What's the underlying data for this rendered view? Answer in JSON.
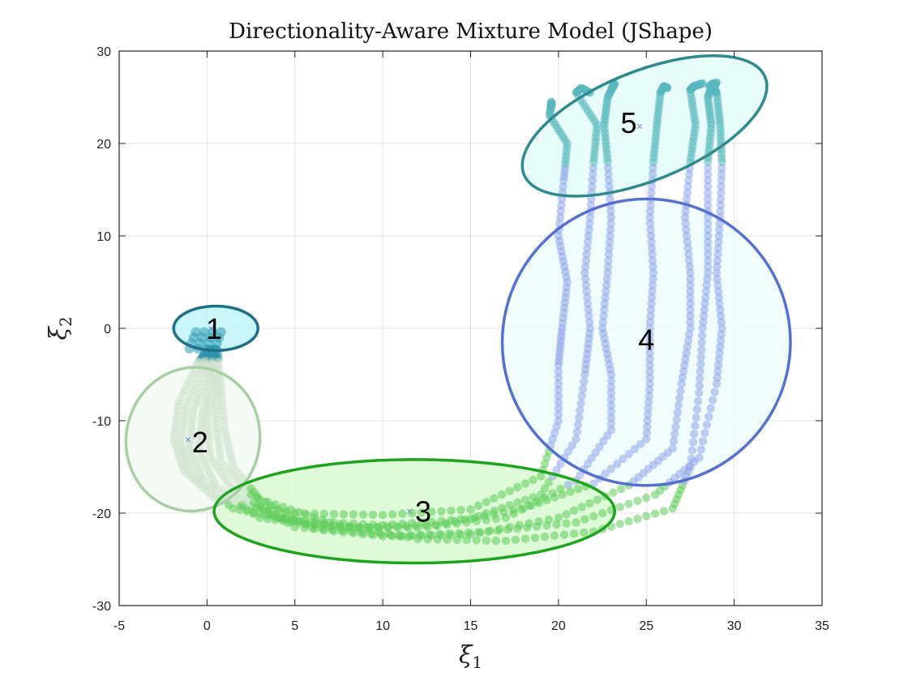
{
  "chart_data": {
    "type": "scatter",
    "title": "Directionality-Aware Mixture Model (JShape)",
    "xlabel": "ξ1",
    "ylabel": "ξ2",
    "xlim": [
      -5,
      35
    ],
    "ylim": [
      -30,
      30
    ],
    "xticks": [
      "-5",
      "0",
      "5",
      "10",
      "15",
      "20",
      "25",
      "30",
      "35"
    ],
    "yticks": [
      "-30",
      "-20",
      "-10",
      "0",
      "10",
      "20",
      "30"
    ],
    "xtick_values": [
      -5,
      0,
      5,
      10,
      15,
      20,
      25,
      30,
      35
    ],
    "ytick_values": [
      -30,
      -20,
      -10,
      0,
      10,
      20,
      30
    ],
    "grid": true,
    "components": [
      {
        "label": "1",
        "center": [
          0.5,
          0
        ],
        "rx": 2.4,
        "ry": 2.4,
        "angle": 0,
        "fill": "#bff5f8",
        "edge": "#1f6f86",
        "label_pos": [
          0.4,
          0
        ]
      },
      {
        "label": "2",
        "center": [
          -0.8,
          -12
        ],
        "rx": 3.8,
        "ry": 7.8,
        "angle": 12,
        "fill": "#f2faf2",
        "edge": "#a8cfa3",
        "label_pos": [
          -0.4,
          -12.3
        ]
      },
      {
        "label": "3",
        "center": [
          11.8,
          -19.8
        ],
        "rx": 11.4,
        "ry": 5.6,
        "angle": 0,
        "fill": "#d8f9d2",
        "edge": "#1ea31e",
        "label_pos": [
          12.3,
          -19.8
        ]
      },
      {
        "label": "4",
        "center": [
          25,
          -1.5
        ],
        "rx": 8.2,
        "ry": 15.5,
        "angle": -8,
        "fill": "#eefcfd",
        "edge": "#5570cf",
        "label_pos": [
          25,
          -1.2
        ]
      },
      {
        "label": "5",
        "center": [
          24.9,
          21.9
        ],
        "rx": 7.4,
        "ry": 5.9,
        "angle": -22,
        "fill": "#e4fbfc",
        "edge": "#2e8a8c",
        "label_pos": [
          24.0,
          22.3
        ]
      }
    ],
    "series": [
      {
        "x": [
          0.0,
          -0.6,
          -1.6,
          -1.9,
          -1.3,
          0.6,
          5.0,
          10.0,
          15.0,
          19.0,
          20.0,
          20.0,
          20.2,
          20.5,
          20.0,
          20.3,
          20.5,
          19.5,
          19.6,
          19.6
        ],
        "y": [
          -2.3,
          -4.0,
          -8.0,
          -12.0,
          -15.5,
          -18.6,
          -20.0,
          -20.2,
          -19.6,
          -16.0,
          -10.0,
          -4.0,
          0.0,
          5.0,
          10.0,
          16.0,
          20.0,
          23.0,
          24.5,
          24.0
        ]
      },
      {
        "x": [
          0.1,
          -0.3,
          -1.2,
          -1.5,
          -0.8,
          1.5,
          5.0,
          10.0,
          15.0,
          19.0,
          21.0,
          21.5,
          21.8,
          21.5,
          21.8,
          22.0,
          22.2,
          21.0,
          21.3,
          21.8
        ],
        "y": [
          -2.3,
          -4.5,
          -8.5,
          -12.5,
          -16.0,
          -19.5,
          -20.8,
          -21.3,
          -20.6,
          -18.0,
          -12.0,
          -5.0,
          0.0,
          6.0,
          12.0,
          18.0,
          22.0,
          25.5,
          26.0,
          25.5
        ]
      },
      {
        "x": [
          0.2,
          0.0,
          -0.8,
          -1.0,
          -0.2,
          3.0,
          7.0,
          12.0,
          17.0,
          21.0,
          23.0,
          23.0,
          22.5,
          22.8,
          23.0,
          22.8,
          22.6,
          22.8,
          23.2,
          23.0
        ],
        "y": [
          -2.3,
          -5.0,
          -9.0,
          -13.0,
          -16.5,
          -20.5,
          -21.5,
          -21.6,
          -20.5,
          -16.5,
          -11.0,
          -5.0,
          0.0,
          6.0,
          12.0,
          18.0,
          22.0,
          25.0,
          26.5,
          25.8
        ]
      },
      {
        "x": [
          0.3,
          0.2,
          -0.3,
          -0.4,
          0.5,
          4.0,
          8.0,
          13.0,
          18.0,
          22.0,
          25.0,
          25.2,
          25.2,
          25.4,
          25.2,
          25.4,
          25.6,
          25.8,
          26.0,
          26.2
        ],
        "y": [
          -2.3,
          -5.5,
          -9.5,
          -13.5,
          -17.0,
          -20.5,
          -21.6,
          -21.3,
          -19.5,
          -16.8,
          -12.0,
          -6.0,
          0.0,
          6.0,
          12.0,
          18.0,
          22.0,
          25.5,
          26.2,
          26.0
        ]
      },
      {
        "x": [
          0.4,
          0.4,
          0.0,
          0.2,
          1.5,
          5.0,
          10.0,
          15.0,
          20.0,
          24.0,
          26.5,
          27.0,
          27.5,
          27.5,
          27.2,
          27.5,
          27.8,
          27.5,
          27.7,
          28.2
        ],
        "y": [
          -2.3,
          -6.0,
          -10.0,
          -14.0,
          -17.5,
          -21.5,
          -22.5,
          -22.3,
          -20.5,
          -17.0,
          -13.0,
          -6.0,
          0.0,
          6.0,
          12.0,
          18.0,
          22.0,
          25.8,
          26.2,
          26.5
        ]
      },
      {
        "x": [
          0.5,
          0.6,
          0.5,
          0.8,
          2.5,
          6.0,
          11.0,
          16.0,
          21.0,
          25.5,
          28.0,
          29.0,
          29.3,
          29.0,
          29.2,
          29.3,
          29.2,
          29.0,
          28.8,
          29.0
        ],
        "y": [
          -2.3,
          -6.2,
          -10.3,
          -14.5,
          -18.0,
          -21.6,
          -22.5,
          -22.0,
          -21.0,
          -18.0,
          -14.0,
          -6.0,
          0.0,
          6.0,
          12.0,
          18.0,
          22.0,
          25.5,
          26.0,
          26.6
        ]
      },
      {
        "x": [
          0.6,
          0.8,
          1.0,
          1.5,
          3.0,
          7.0,
          12.0,
          17.0,
          22.0,
          26.5,
          27.5,
          28.0,
          28.2,
          28.5,
          28.5,
          28.5,
          28.7,
          28.5,
          28.8,
          28.6
        ],
        "y": [
          -2.3,
          -6.5,
          -11.0,
          -15.0,
          -18.5,
          -21.0,
          -22.8,
          -23.0,
          -22.0,
          -19.5,
          -15.0,
          -7.0,
          0.0,
          6.0,
          12.0,
          18.0,
          22.0,
          25.0,
          26.5,
          26.2
        ]
      }
    ]
  }
}
